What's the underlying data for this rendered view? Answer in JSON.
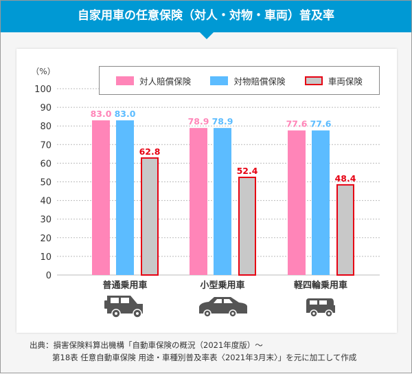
{
  "title": "自家用車の任意保険（対人・対物・車両）普及率",
  "chart_data": {
    "type": "bar",
    "ylabel": "（%）",
    "ylim": [
      0,
      100
    ],
    "yticks": [
      0,
      10,
      20,
      30,
      40,
      50,
      60,
      70,
      80,
      90,
      100
    ],
    "grid": true,
    "legend_position": "top-right",
    "categories": [
      "普通乗用車",
      "小型乗用車",
      "軽四輪乗用車"
    ],
    "category_icons": [
      "suv-car-icon",
      "sedan-car-icon",
      "kei-car-icon"
    ],
    "series": [
      {
        "name": "対人賠償保険",
        "values": [
          83.0,
          78.9,
          77.6
        ],
        "color": "#ff85b8",
        "label_color": "#ff85b8"
      },
      {
        "name": "対物賠償保険",
        "values": [
          83.0,
          78.9,
          77.6
        ],
        "color": "#5cbcff",
        "label_color": "#5cbcff"
      },
      {
        "name": "車両保険",
        "values": [
          62.8,
          52.4,
          48.4
        ],
        "color": "#c8c8c8",
        "border": "#e60012",
        "label_color": "#e60012"
      }
    ]
  },
  "source": {
    "line1": "出典：損害保険料算出機構「自動車保険の概況（2021年度版）～",
    "line2": "第18表 任意自動車保険 用途・車種別普及率表〈2021年3月末〉」を元に加工して作成"
  }
}
